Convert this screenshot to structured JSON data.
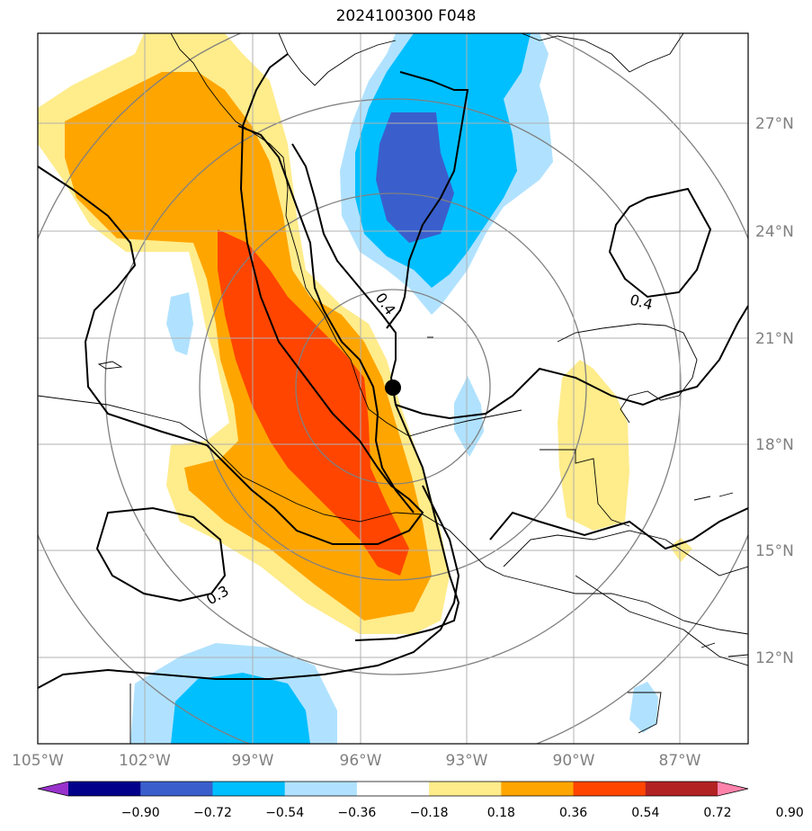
{
  "title": "2024100300 F048",
  "map": {
    "lon_ticks": [
      "105°W",
      "102°W",
      "99°W",
      "96°W",
      "93°W",
      "90°W",
      "87°W"
    ],
    "lat_ticks": [
      "27°N",
      "24°N",
      "21°N",
      "18°N",
      "15°N",
      "12°N"
    ],
    "contour_labels": [
      "0.4",
      "0.4",
      "0.3"
    ],
    "marker": "storm-center-dot"
  },
  "colorbar": {
    "labels": [
      "−0.90",
      "−0.72",
      "−0.54",
      "−0.36",
      "−0.18",
      "0.18",
      "0.36",
      "0.54",
      "0.72",
      "0.90"
    ],
    "colors": [
      "#9932cc",
      "#00008b",
      "#3a5fcd",
      "#00bfff",
      "#b0e2ff",
      "#ffffff",
      "#ffec8b",
      "#ffa500",
      "#ff4500",
      "#b22222",
      "#ff82ab"
    ]
  }
}
